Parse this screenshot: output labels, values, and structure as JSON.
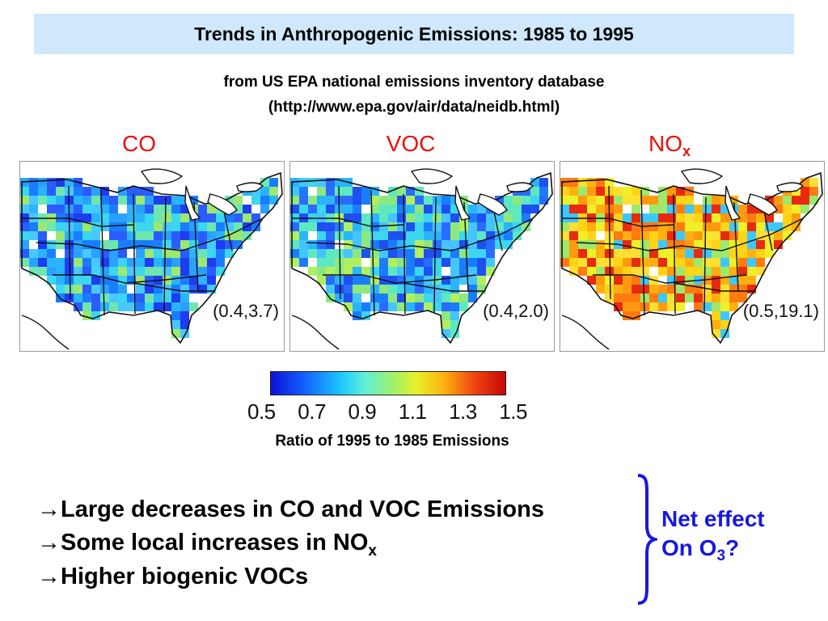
{
  "title": "Trends in Anthropogenic Emissions: 1985 to 1995",
  "source_line1": "from US EPA national emissions inventory database",
  "source_line2": "(http://www.epa.gov/air/data/neidb.html)",
  "maps": [
    {
      "label": "CO",
      "label_sub": "",
      "range": "(0.4,3.7)",
      "palette": [
        "#1a7dff",
        "#2ab4ff",
        "#3cd6f0",
        "#2a5cff",
        "#6ee6b0",
        "#1e3cf0",
        "#48c8ff",
        "#9ce870",
        "#2aa0ff"
      ]
    },
    {
      "label": "VOC",
      "label_sub": "",
      "range": "(0.4,2.0)",
      "palette": [
        "#1a7dff",
        "#2ab4ff",
        "#3cd6f0",
        "#5ee8c0",
        "#2a6cff",
        "#8ee880",
        "#46c4ff",
        "#1e50f0",
        "#b0f060"
      ]
    },
    {
      "label": "NO",
      "label_sub": "x",
      "range": "(0.5,19.1)",
      "palette": [
        "#ffd418",
        "#ffb010",
        "#f0f028",
        "#ff7a10",
        "#e82a10",
        "#ffe030",
        "#9ee86a",
        "#ff9a10",
        "#3cc8ff"
      ]
    }
  ],
  "colorbar": {
    "colors": [
      "#0a12d6",
      "#1ec8ff",
      "#9ef06e",
      "#e8f028",
      "#ffb010",
      "#c80808"
    ],
    "ticks": [
      "0.5",
      "0.7",
      "0.9",
      "1.1",
      "1.3",
      "1.5"
    ]
  },
  "colorbar_label": "Ratio of 1995 to 1985 Emissions",
  "bullets": [
    {
      "arrow": "→",
      "text": "Large decreases in CO and VOC Emissions",
      "sub": ""
    },
    {
      "arrow": "→",
      "text": "Some local increases in NO",
      "sub": "x"
    },
    {
      "arrow": "→",
      "text": "Higher biogenic VOCs",
      "sub": ""
    }
  ],
  "net_effect": {
    "line1": "Net effect",
    "line2": "On O",
    "line2_sub": "3",
    "line2_end": "?",
    "color": "#1818e0"
  }
}
